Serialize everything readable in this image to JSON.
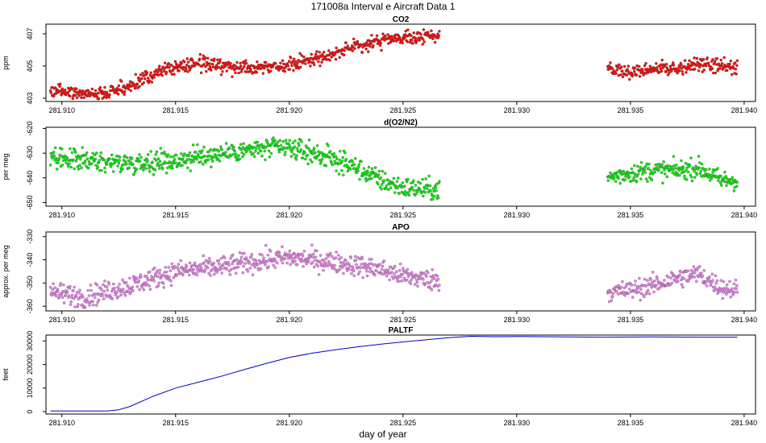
{
  "figure": {
    "title": "171008a   Interval e Aircraft Data 1",
    "xlabel": "day of year"
  },
  "chart_data": [
    {
      "type": "scatter",
      "title": "CO2",
      "ylabel": "ppm",
      "color": "#ff0000",
      "xlim": [
        281.9093,
        281.9405
      ],
      "ylim": [
        402.8,
        407.6
      ],
      "x_ticks": [
        281.91,
        281.915,
        281.92,
        281.925,
        281.93,
        281.935,
        281.94
      ],
      "x_tick_labels": [
        "281.910",
        "281.915",
        "281.920",
        "281.925",
        "281.930",
        "281.935",
        "281.940"
      ],
      "y_ticks": [
        403,
        405,
        407
      ],
      "y_tick_labels": [
        "403",
        "405",
        "407"
      ],
      "segments": [
        {
          "x_start": 281.9095,
          "x_end": 281.9266,
          "x": [
            281.9095,
            281.911,
            281.912,
            281.913,
            281.9145,
            281.916,
            281.9175,
            281.919,
            281.92,
            281.9215,
            281.923,
            281.924,
            281.925,
            281.9266
          ],
          "y": [
            403.5,
            403.3,
            403.3,
            403.8,
            404.8,
            405.2,
            404.9,
            405.0,
            405.1,
            405.6,
            406.2,
            406.6,
            406.7,
            406.9
          ],
          "noise": 0.3
        },
        {
          "x_start": 281.934,
          "x_end": 281.9397,
          "x": [
            281.934,
            281.935,
            281.936,
            281.937,
            281.938,
            281.939,
            281.9397
          ],
          "y": [
            404.9,
            404.6,
            404.9,
            404.8,
            405.1,
            405.0,
            404.9
          ],
          "noise": 0.3
        }
      ]
    },
    {
      "type": "scatter",
      "title": "d(O2/N2)",
      "ylabel": "per meg",
      "color": "#00ee00",
      "xlim": [
        281.9093,
        281.9405
      ],
      "ylim": [
        -651.5,
        -619.5
      ],
      "x_ticks": [
        281.91,
        281.915,
        281.92,
        281.925,
        281.93,
        281.935,
        281.94
      ],
      "x_tick_labels": [
        "281.910",
        "281.915",
        "281.920",
        "281.925",
        "281.930",
        "281.935",
        "281.940"
      ],
      "y_ticks": [
        -650,
        -640,
        -630,
        -620
      ],
      "y_tick_labels": [
        "-650",
        "-640",
        "-630",
        "-620"
      ],
      "segments": [
        {
          "x_start": 281.9095,
          "x_end": 281.9266,
          "x": [
            281.9095,
            281.911,
            281.913,
            281.915,
            281.917,
            281.919,
            281.92,
            281.9215,
            281.923,
            281.924,
            281.925,
            281.9266
          ],
          "y": [
            -633,
            -633,
            -634,
            -633,
            -630,
            -628,
            -628,
            -631,
            -636,
            -641,
            -644,
            -645
          ],
          "noise": 3.0
        },
        {
          "x_start": 281.934,
          "x_end": 281.9397,
          "x": [
            281.934,
            281.935,
            281.936,
            281.937,
            281.938,
            281.939,
            281.9397
          ],
          "y": [
            -640,
            -638,
            -637,
            -637,
            -636,
            -641,
            -641
          ],
          "noise": 2.8
        }
      ]
    },
    {
      "type": "scatter",
      "title": "APO",
      "ylabel": "approx. per meg",
      "color": "#ee82ee",
      "xlim": [
        281.9093,
        281.9405
      ],
      "ylim": [
        -362,
        -328
      ],
      "x_ticks": [
        281.91,
        281.915,
        281.92,
        281.925,
        281.93,
        281.935,
        281.94
      ],
      "x_tick_labels": [
        "281.910",
        "281.915",
        "281.920",
        "281.925",
        "281.930",
        "281.935",
        "281.940"
      ],
      "y_ticks": [
        -360,
        -350,
        -340,
        -330
      ],
      "y_tick_labels": [
        "-360",
        "-350",
        "-340",
        "-330"
      ],
      "segments": [
        {
          "x_start": 281.9095,
          "x_end": 281.9266,
          "x": [
            281.9095,
            281.911,
            281.913,
            281.915,
            281.917,
            281.919,
            281.92,
            281.922,
            281.924,
            281.925,
            281.9266
          ],
          "y": [
            -354,
            -356,
            -351,
            -345,
            -343,
            -340,
            -339,
            -341,
            -344,
            -347,
            -349
          ],
          "noise": 3.2
        },
        {
          "x_start": 281.934,
          "x_end": 281.9397,
          "x": [
            281.934,
            281.935,
            281.936,
            281.937,
            281.938,
            281.939,
            281.9397
          ],
          "y": [
            -354,
            -353,
            -351,
            -348,
            -346,
            -352,
            -353
          ],
          "noise": 3.0
        }
      ]
    },
    {
      "type": "line",
      "title": "PALTF",
      "ylabel": "feet",
      "color": "#0000cc",
      "xlim": [
        281.9093,
        281.9405
      ],
      "ylim": [
        -1000,
        32500
      ],
      "x_ticks": [
        281.91,
        281.915,
        281.92,
        281.925,
        281.93,
        281.935,
        281.94
      ],
      "x_tick_labels": [
        "281.910",
        "281.915",
        "281.920",
        "281.925",
        "281.930",
        "281.935",
        "281.940"
      ],
      "y_ticks": [
        0,
        10000,
        20000,
        30000
      ],
      "y_tick_labels": [
        "0",
        "10000",
        "20000",
        "30000"
      ],
      "x": [
        281.9095,
        281.912,
        281.9125,
        281.913,
        281.914,
        281.915,
        281.916,
        281.917,
        281.918,
        281.919,
        281.92,
        281.921,
        281.922,
        281.923,
        281.924,
        281.925,
        281.926,
        281.927,
        281.928,
        281.929,
        281.93,
        281.931,
        281.932,
        281.934,
        281.936,
        281.938,
        281.9397
      ],
      "y": [
        300,
        300,
        800,
        2200,
        6500,
        10000,
        12500,
        15000,
        17800,
        20500,
        23000,
        24800,
        26200,
        27500,
        28600,
        29600,
        30500,
        31400,
        32000,
        31800,
        31900,
        31800,
        31700,
        31600,
        31700,
        31600,
        31600
      ]
    }
  ]
}
